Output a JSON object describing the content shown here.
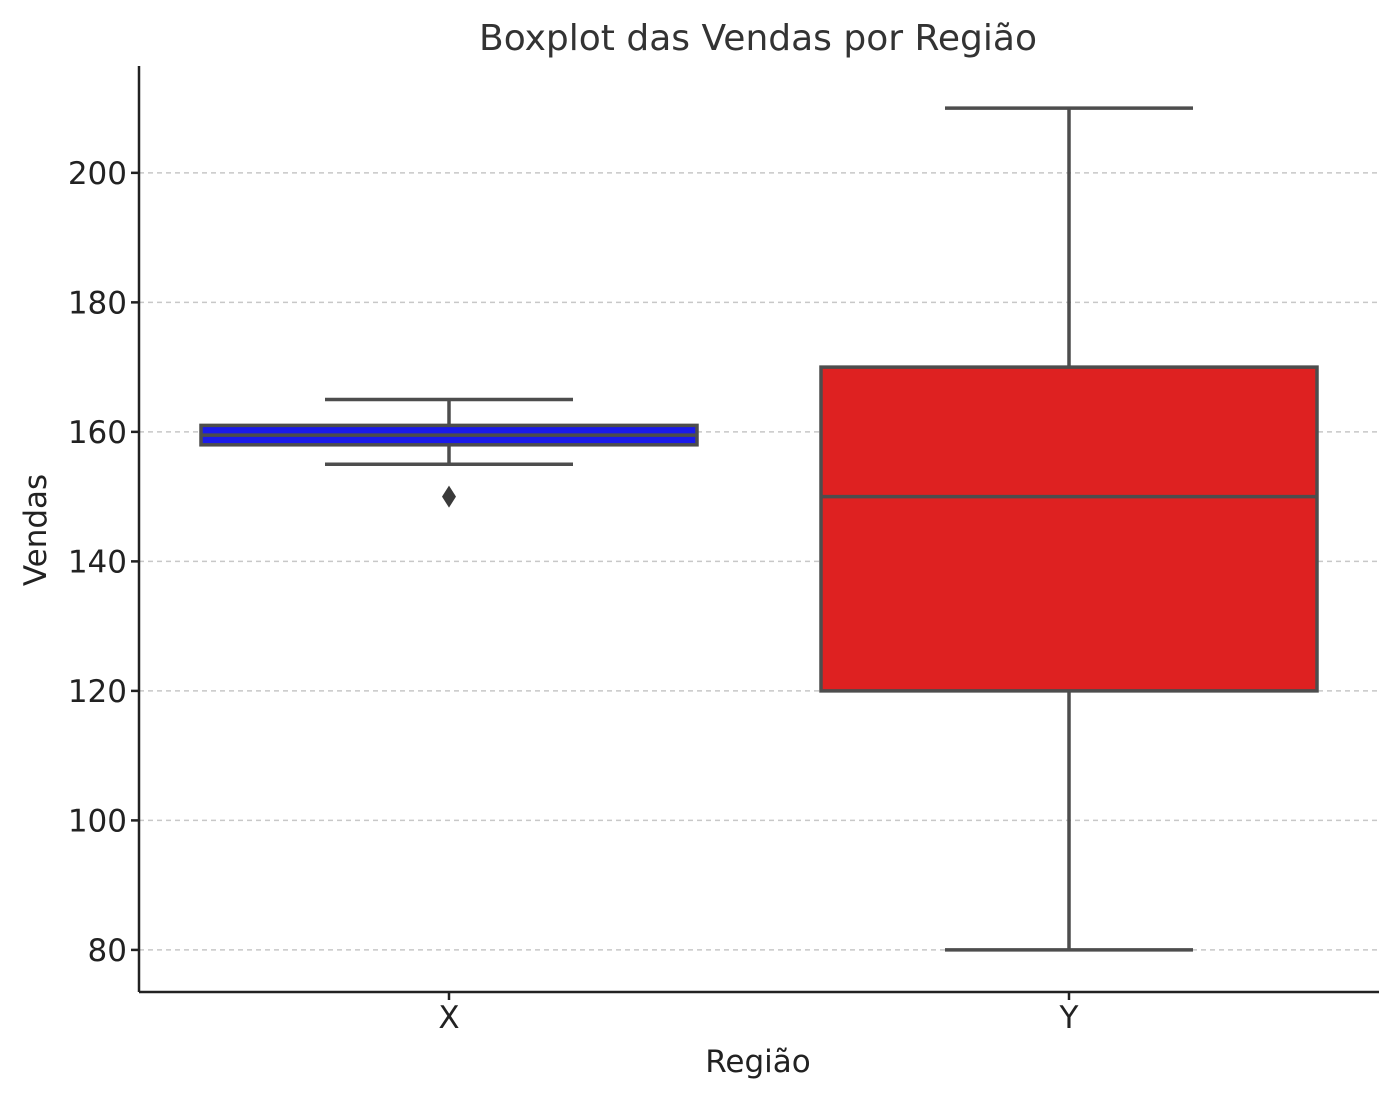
{
  "chart_data": {
    "type": "box",
    "title": "Boxplot das Vendas por Região",
    "xlabel": "Região",
    "ylabel": "Vendas",
    "ylim": [
      73.5,
      216.5
    ],
    "yticks": [
      80,
      100,
      120,
      140,
      160,
      180,
      200
    ],
    "grid": "y-dashed",
    "categories": [
      "X",
      "Y"
    ],
    "boxes": [
      {
        "category": "X",
        "color": "#1a1aeb",
        "whisker_low": 155,
        "q1": 158,
        "median": 159.5,
        "q3": 161,
        "whisker_high": 165,
        "outliers": [
          150
        ]
      },
      {
        "category": "Y",
        "color": "#de2121",
        "whisker_low": 80,
        "q1": 120,
        "median": 150,
        "q3": 170,
        "whisker_high": 210,
        "outliers": []
      }
    ]
  }
}
